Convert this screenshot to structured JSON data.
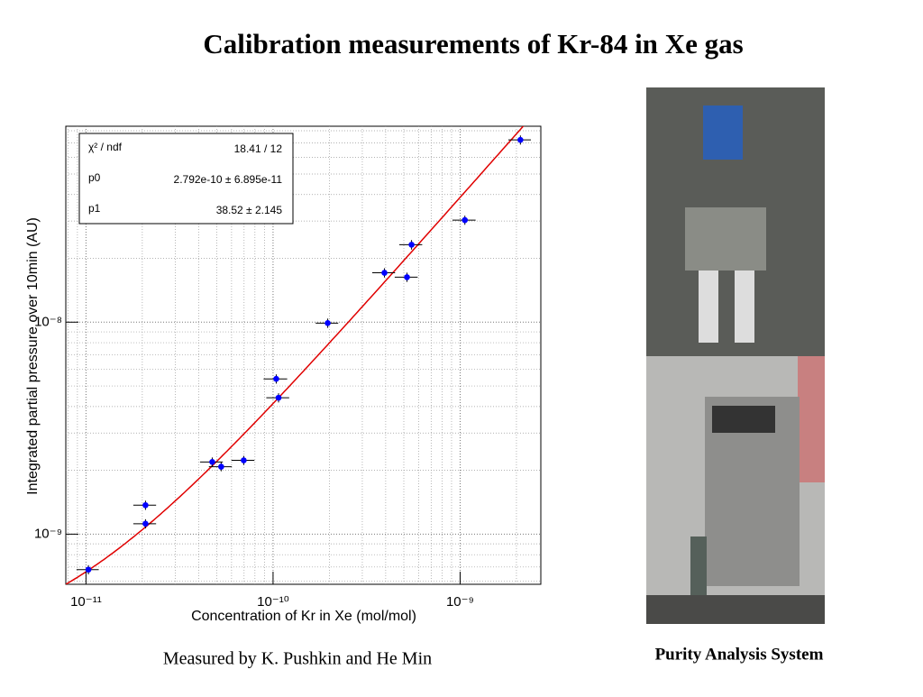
{
  "title": "Calibration measurements of Kr-84 in Xe gas",
  "caption": "Measured by K. Pushkin and He Min",
  "photo_caption": "Purity Analysis System",
  "chart_data": {
    "type": "scatter",
    "xlabel": "Concentration of Kr in Xe (mol/mol)",
    "ylabel": "Integrated partial pressure over 10min (AU)",
    "x": [
      1.03e-11,
      2.08e-11,
      2.08e-11,
      4.73e-11,
      5.28e-11,
      6.97e-11,
      1.04e-10,
      1.07e-10,
      1.96e-10,
      3.94e-10,
      5.2e-10,
      5.5e-10,
      1.06e-09,
      2.1e-09
    ],
    "values": [
      6.8e-10,
      1.12e-09,
      1.37e-09,
      2.19e-09,
      2.08e-09,
      2.23e-09,
      5.4e-09,
      4.4e-09,
      9.9e-09,
      1.71e-08,
      1.63e-08,
      2.32e-08,
      3.03e-08,
      7.24e-08
    ],
    "xerr": [
      1.4e-12,
      2.9e-12,
      2.9e-12,
      6.6e-12,
      7.4e-12,
      9.8e-12,
      1.5e-11,
      1.5e-11,
      2.7e-11,
      5.5e-11,
      7.3e-11,
      7.7e-11,
      1.5e-10,
      2.9e-10
    ],
    "yerr": [
      3.4e-11,
      5.6e-11,
      6.9e-11,
      1.1e-10,
      1e-10,
      1.1e-10,
      2.7e-10,
      2.2e-10,
      5e-10,
      8.6e-10,
      8.2e-10,
      1.2e-09,
      1.5e-09,
      3.6e-09
    ],
    "color": "#0000ff",
    "fit": {
      "color": "#e00000",
      "p0": 2.792e-10,
      "p1": 38.52
    },
    "stats": [
      {
        "name": "χ² / ndf",
        "label": "18.41 / 12"
      },
      {
        "name": "p0",
        "label": "2.792e-10 ± 6.895e-11"
      },
      {
        "name": "p1",
        "label": "38.52 ± 2.145"
      }
    ],
    "xlim": [
      7.8e-12,
      2.7e-09
    ],
    "ylim": [
      5.8e-10,
      8.4e-08
    ],
    "xticks": [
      {
        "value": 1e-11,
        "label": "10⁻¹¹"
      },
      {
        "value": 1e-10,
        "label": "10⁻¹⁰"
      },
      {
        "value": 1e-09,
        "label": "10⁻⁹"
      }
    ],
    "yticks": [
      {
        "value": 1e-09,
        "label": "10⁻⁹"
      },
      {
        "value": 1e-08,
        "label": "10⁻⁸"
      }
    ],
    "log_x": true,
    "log_y": true,
    "grid": true
  }
}
